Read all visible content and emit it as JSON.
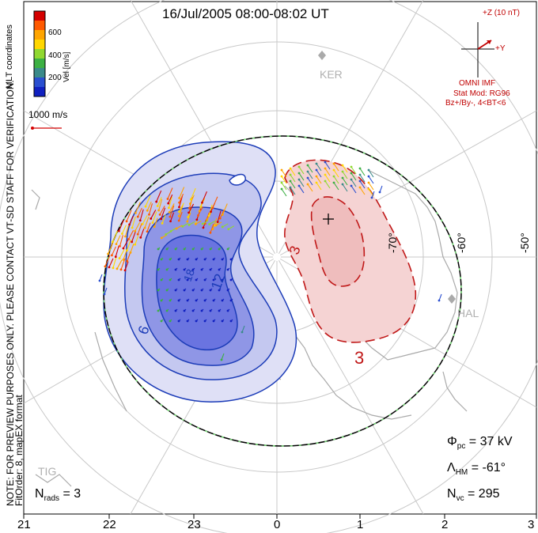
{
  "title": "16/Jul/2005 08:00-08:02 UT",
  "notes": {
    "line1": "NOTE: FOR PREVIEW PURPOSES ONLY. PLEASE CONTACT VT-SD STAFF FOR VERIFICATION.",
    "line2": "FitOrder: 8, mapEX format"
  },
  "colorbar": {
    "ticks": [
      "600",
      "400",
      "200"
    ],
    "label": "Vel [m/s]",
    "coords": "MLT coordinates",
    "colors": [
      "#d40000",
      "#ff5a00",
      "#ffa500",
      "#ffd700",
      "#90d830",
      "#3cb043",
      "#3a8a8a",
      "#2a4fd0",
      "#1020c0"
    ]
  },
  "scale_label": "1000 m/s",
  "imf": {
    "z": "+Z (10 nT)",
    "y": "+Y",
    "source": "OMNI IMF",
    "model": "Stat Mod: RG96",
    "cond": "Bz+/By-, 4<BT<6"
  },
  "stations": [
    "KER",
    "HAL",
    "TIG"
  ],
  "lat_labels": [
    "-70°",
    "-60°",
    "-50°"
  ],
  "contour_labels": {
    "neg": [
      "6",
      "12",
      "18"
    ],
    "pos": "3"
  },
  "stats": {
    "phi_label": "Φ",
    "phi_sub": "pc",
    "phi_value": "= 37 kV",
    "lam_label": "Λ",
    "lam_sub": "HM",
    "lam_value": "= -61°",
    "nvc_label": "N",
    "nvc_sub": "vc",
    "nvc_value": "= 295",
    "nrads_label": "N",
    "nrads_sub": "rads",
    "nrads_value": "= 3"
  },
  "mlt_labels": [
    "21",
    "22",
    "23",
    "0",
    "1",
    "2",
    "3"
  ],
  "colors": {
    "neg": "#1c3cb8",
    "pos": "#c01818",
    "neg_fill": "#6a74e0",
    "pos_fill": "#f2b8b8"
  }
}
